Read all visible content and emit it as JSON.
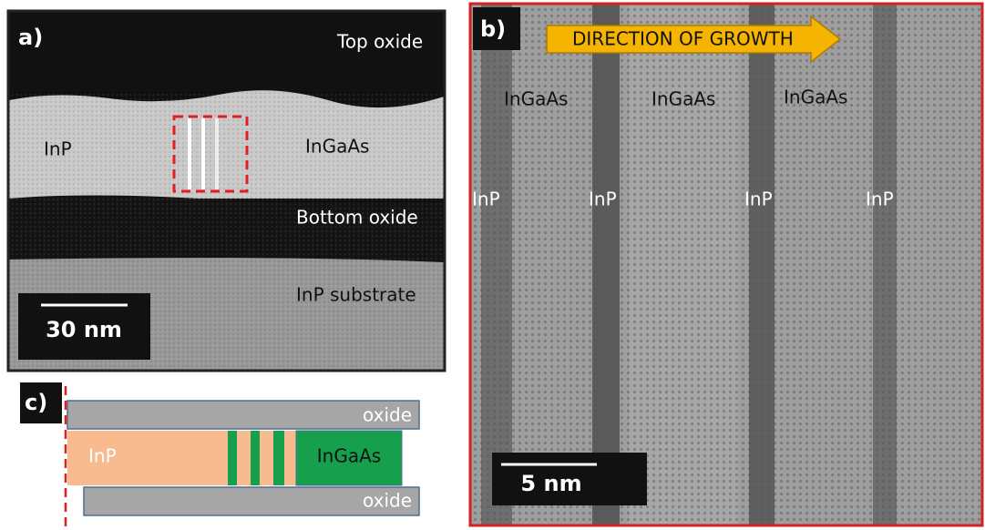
{
  "panels": {
    "a": {
      "label": "a)",
      "top_oxide": "Top oxide",
      "inp": "InP",
      "ingaas": "InGaAs",
      "bottom_oxide": "Bottom oxide",
      "substrate": "InP substrate",
      "scale_bar": "30 nm"
    },
    "b": {
      "label": "b)",
      "arrow": "DIRECTION OF GROWTH",
      "ingaas_labels": [
        "InGaAs",
        "InGaAs",
        "InGaAs"
      ],
      "inp_labels": [
        "InP",
        "InP",
        "InP",
        "InP"
      ],
      "scale_bar": "5 nm"
    },
    "c": {
      "label": "c)",
      "top_oxide": "oxide",
      "inp": "InP",
      "ingaas": "InGaAs",
      "bottom_oxide": "oxide"
    }
  }
}
